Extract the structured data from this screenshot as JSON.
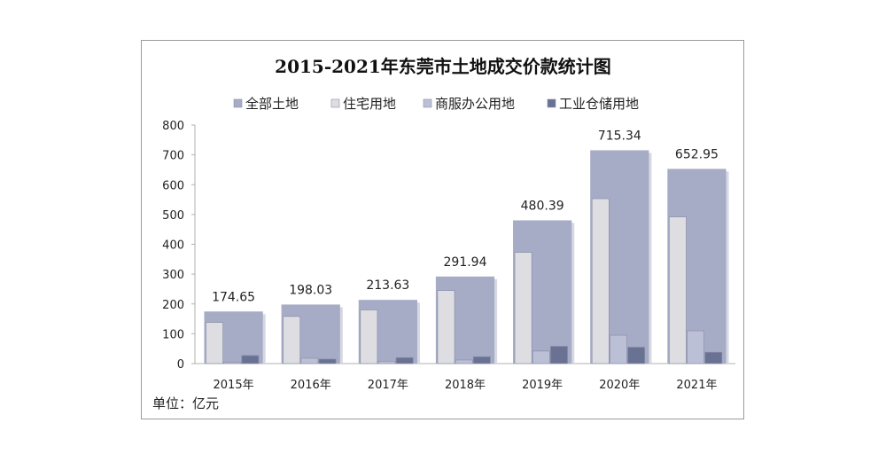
{
  "chart_data": {
    "type": "bar",
    "title": "2015-2021年东莞市土地成交价款统计图",
    "unit_label": "单位：亿元",
    "categories": [
      "2015年",
      "2016年",
      "2017年",
      "2018年",
      "2019年",
      "2020年",
      "2021年"
    ],
    "ylim": [
      0,
      800
    ],
    "yticks": [
      0,
      100,
      200,
      300,
      400,
      500,
      600,
      700,
      800
    ],
    "legend_position": "top",
    "grid": false,
    "series": [
      {
        "name": "全部土地",
        "color": "#a7acc6",
        "values": [
          174.65,
          198.03,
          213.63,
          291.94,
          480.39,
          715.34,
          652.95
        ],
        "labels": [
          "174.65",
          "198.03",
          "213.63",
          "291.94",
          "480.39",
          "715.34",
          "652.95"
        ]
      },
      {
        "name": "住宅用地",
        "color": "#dedee2",
        "values": [
          138,
          158,
          180,
          245,
          373,
          553,
          492
        ]
      },
      {
        "name": "商服办公用地",
        "color": "#bcc0d6",
        "values": [
          5,
          18,
          8,
          12,
          42,
          95,
          110
        ]
      },
      {
        "name": "工业仓储用地",
        "color": "#6a7294",
        "values": [
          27,
          15,
          20,
          23,
          58,
          55,
          38
        ]
      }
    ]
  }
}
